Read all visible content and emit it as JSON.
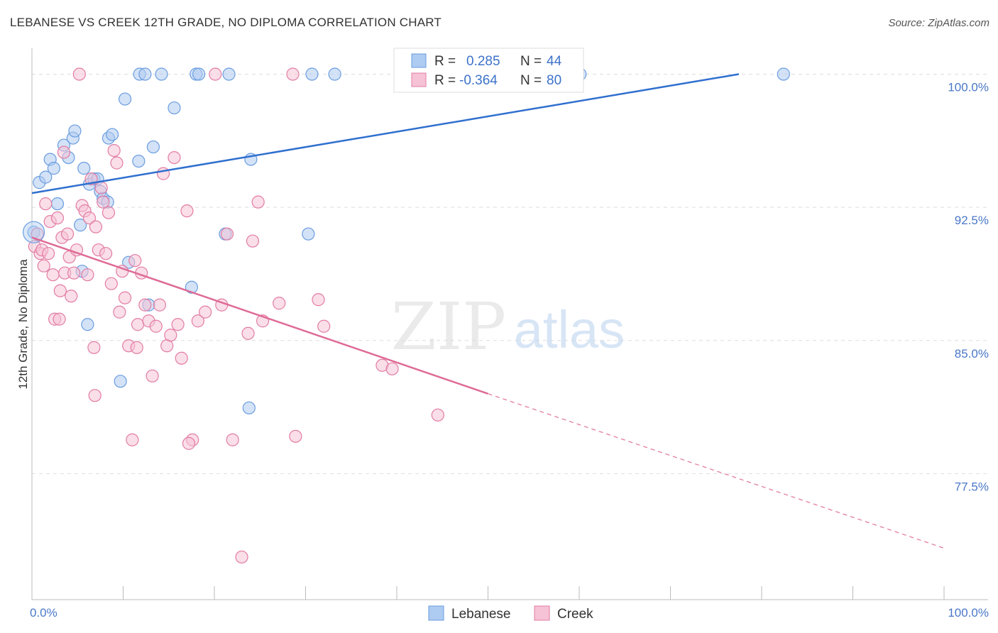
{
  "title": "LEBANESE VS CREEK 12TH GRADE, NO DIPLOMA CORRELATION CHART",
  "source": "Source: ZipAtlas.com",
  "watermark": {
    "zip": "ZIP",
    "atlas": "atlas"
  },
  "chart_data": {
    "type": "scatter",
    "ylabel": "12th Grade, No Diploma",
    "xlabel": "",
    "xlim": [
      0,
      100
    ],
    "ylim": [
      70.4,
      101.3
    ],
    "y_ticks": [
      {
        "value": 100.0,
        "label": "100.0%"
      },
      {
        "value": 92.5,
        "label": "92.5%"
      },
      {
        "value": 85.0,
        "label": "85.0%"
      },
      {
        "value": 77.5,
        "label": "77.5%"
      }
    ],
    "x_tick_labels": {
      "left": "0.0%",
      "right": "100.0%"
    },
    "grid": true,
    "legend_position": "top-center",
    "stats": [
      {
        "r_label": "R =",
        "r": "0.285",
        "n_label": "N =",
        "n": "44"
      },
      {
        "r_label": "R =",
        "r": "-0.364",
        "n_label": "N =",
        "n": "80"
      }
    ],
    "series": [
      {
        "name": "Lebanese",
        "color": "#6a9de0",
        "fill": "#aecbf1",
        "trend": {
          "x0": 0,
          "y0": 93.3,
          "x1": 77.5,
          "y1": 100.0,
          "dashed_to": null
        },
        "points": [
          [
            0.2,
            91.1
          ],
          [
            0.8,
            93.9
          ],
          [
            1.5,
            94.2
          ],
          [
            2.0,
            95.2
          ],
          [
            2.4,
            94.7
          ],
          [
            2.8,
            92.7
          ],
          [
            3.5,
            96.0
          ],
          [
            4.0,
            95.3
          ],
          [
            4.5,
            96.4
          ],
          [
            4.7,
            96.8
          ],
          [
            5.3,
            91.5
          ],
          [
            5.5,
            88.9
          ],
          [
            5.7,
            94.7
          ],
          [
            6.1,
            85.9
          ],
          [
            6.3,
            93.8
          ],
          [
            6.8,
            94.1
          ],
          [
            7.2,
            94.1
          ],
          [
            7.5,
            93.4
          ],
          [
            7.8,
            93.0
          ],
          [
            8.3,
            92.8
          ],
          [
            8.4,
            96.4
          ],
          [
            8.8,
            96.6
          ],
          [
            9.7,
            82.7
          ],
          [
            10.2,
            98.6
          ],
          [
            10.6,
            89.4
          ],
          [
            11.7,
            95.1
          ],
          [
            11.8,
            100.0
          ],
          [
            12.4,
            100.0
          ],
          [
            12.8,
            87.0
          ],
          [
            13.3,
            95.9
          ],
          [
            14.2,
            100.0
          ],
          [
            15.6,
            98.1
          ],
          [
            17.5,
            88.0
          ],
          [
            18.0,
            100.0
          ],
          [
            18.3,
            100.0
          ],
          [
            21.2,
            91.0
          ],
          [
            21.6,
            100.0
          ],
          [
            23.8,
            81.2
          ],
          [
            24.0,
            95.2
          ],
          [
            30.3,
            91.0
          ],
          [
            30.7,
            100.0
          ],
          [
            33.2,
            100.0
          ],
          [
            60.1,
            100.0
          ],
          [
            82.4,
            100.0
          ]
        ]
      },
      {
        "name": "Creek",
        "color": "#e27ca3",
        "fill": "#f6c2d5",
        "trend": {
          "x0": 0,
          "y0": 90.8,
          "x1": 50.0,
          "y1": 82.0,
          "dashed_to": {
            "x": 100,
            "y": 73.3
          }
        },
        "points": [
          [
            0.3,
            90.3
          ],
          [
            0.6,
            91.0
          ],
          [
            0.9,
            89.9
          ],
          [
            1.1,
            90.1
          ],
          [
            1.3,
            89.2
          ],
          [
            1.5,
            92.7
          ],
          [
            1.8,
            89.9
          ],
          [
            2.0,
            91.7
          ],
          [
            2.3,
            88.7
          ],
          [
            2.5,
            86.2
          ],
          [
            2.8,
            91.9
          ],
          [
            3.1,
            87.8
          ],
          [
            3.3,
            90.8
          ],
          [
            3.5,
            95.6
          ],
          [
            3.6,
            88.8
          ],
          [
            3.9,
            91.0
          ],
          [
            4.1,
            89.7
          ],
          [
            4.3,
            87.5
          ],
          [
            4.6,
            88.8
          ],
          [
            4.9,
            90.1
          ],
          [
            5.2,
            100.0
          ],
          [
            5.5,
            92.6
          ],
          [
            5.8,
            92.3
          ],
          [
            6.1,
            88.7
          ],
          [
            6.3,
            91.9
          ],
          [
            6.5,
            94.1
          ],
          [
            6.8,
            84.6
          ],
          [
            7.0,
            91.4
          ],
          [
            7.3,
            90.1
          ],
          [
            7.6,
            93.6
          ],
          [
            7.8,
            92.8
          ],
          [
            8.1,
            89.9
          ],
          [
            8.4,
            92.2
          ],
          [
            8.7,
            88.2
          ],
          [
            9.0,
            95.7
          ],
          [
            9.3,
            95.0
          ],
          [
            9.6,
            86.6
          ],
          [
            9.9,
            88.9
          ],
          [
            10.2,
            87.4
          ],
          [
            10.6,
            84.7
          ],
          [
            11.0,
            79.4
          ],
          [
            11.3,
            89.5
          ],
          [
            11.6,
            85.9
          ],
          [
            12.0,
            88.8
          ],
          [
            12.4,
            87.0
          ],
          [
            12.8,
            86.1
          ],
          [
            13.2,
            83.0
          ],
          [
            13.6,
            85.8
          ],
          [
            14.0,
            87.0
          ],
          [
            14.4,
            94.4
          ],
          [
            14.8,
            84.7
          ],
          [
            15.2,
            85.3
          ],
          [
            15.6,
            95.3
          ],
          [
            16.0,
            85.9
          ],
          [
            16.4,
            84.0
          ],
          [
            17.0,
            92.3
          ],
          [
            17.6,
            79.4
          ],
          [
            18.2,
            86.1
          ],
          [
            19.0,
            86.6
          ],
          [
            20.1,
            100.0
          ],
          [
            20.8,
            87.0
          ],
          [
            21.4,
            91.0
          ],
          [
            22.0,
            79.4
          ],
          [
            23.0,
            72.8
          ],
          [
            23.7,
            85.4
          ],
          [
            24.2,
            90.6
          ],
          [
            24.8,
            92.8
          ],
          [
            25.3,
            86.1
          ],
          [
            27.1,
            87.1
          ],
          [
            28.6,
            100.0
          ],
          [
            28.9,
            79.6
          ],
          [
            31.4,
            87.3
          ],
          [
            32.0,
            85.8
          ],
          [
            38.4,
            83.6
          ],
          [
            39.5,
            83.4
          ],
          [
            44.5,
            80.8
          ],
          [
            3.0,
            86.2
          ],
          [
            6.9,
            81.9
          ],
          [
            11.5,
            84.6
          ],
          [
            17.2,
            79.2
          ]
        ]
      }
    ]
  }
}
